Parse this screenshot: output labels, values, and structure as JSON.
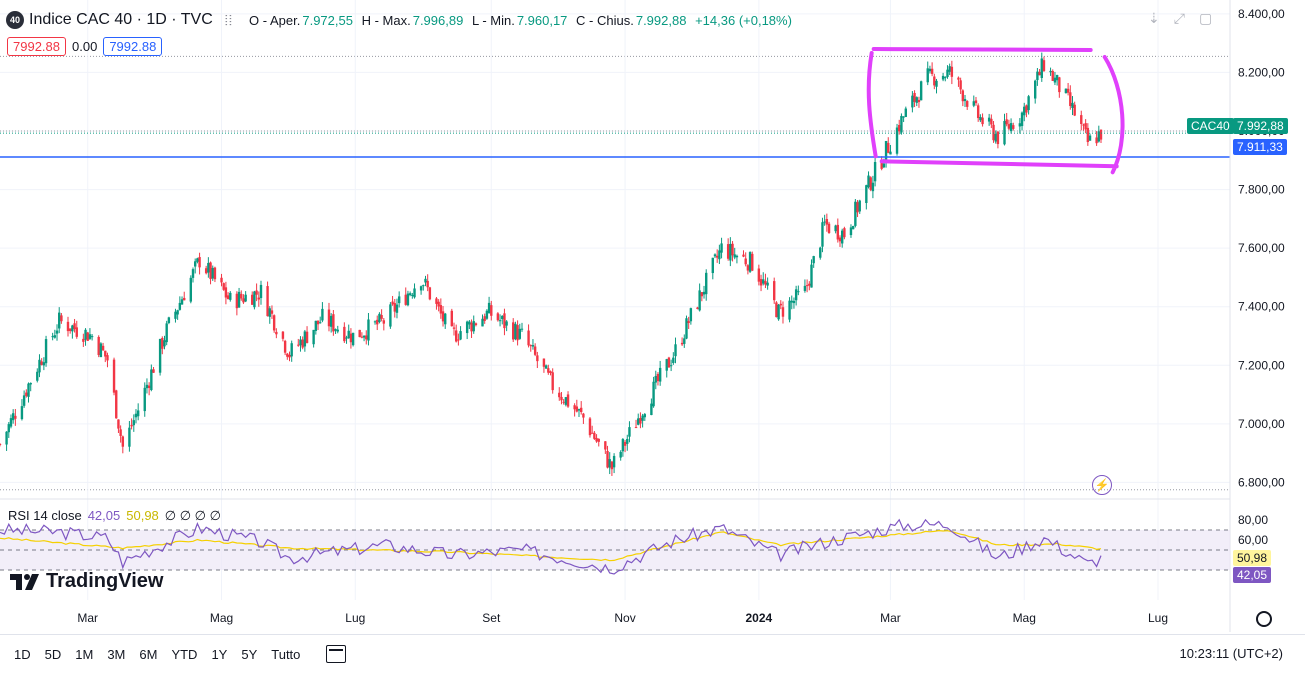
{
  "header": {
    "symbol_icon": "40",
    "title": "Indice CAC 40 · 1D · TVC",
    "more_icon": "⦙⦙",
    "ohlc": {
      "open_label": "O - Aper.",
      "open": "7.972,55",
      "high_label": "H - Max.",
      "high": "7.996,89",
      "low_label": "L - Min.",
      "low": "7.960,17",
      "close_label": "C - Chius.",
      "close": "7.992,88",
      "change": "+14,36 (+0,18%)"
    },
    "bid": "7992.88",
    "spread": "0.00",
    "ask": "7992.88",
    "icons": [
      "arrow-down-icon",
      "expand-icon",
      "maximize-icon"
    ]
  },
  "price_axis": {
    "labels": [
      "8.400,00",
      "8.200,00",
      "8.000,00",
      "7.800,00",
      "7.600,00",
      "7.400,00",
      "7.200,00",
      "7.000,00",
      "6.800,00"
    ]
  },
  "price_tags": {
    "symbol": "CAC40",
    "last": "7.992,88",
    "hline": "7.911,33"
  },
  "rsi": {
    "label": "RSI 14 close",
    "value": "42,05",
    "ma": "50,98",
    "extras": "∅ ∅ ∅ ∅",
    "axis": [
      "80,00",
      "60,00"
    ],
    "value_tag": "42,05",
    "ma_tag": "50,98"
  },
  "time_axis": {
    "labels": [
      "Mar",
      "Mag",
      "Lug",
      "Set",
      "Nov",
      "2024",
      "Mar",
      "Mag",
      "Lug"
    ]
  },
  "logo": "TradingView",
  "bottom": {
    "ranges": [
      "1D",
      "5D",
      "1M",
      "3M",
      "6M",
      "YTD",
      "1Y",
      "5Y",
      "Tutto"
    ],
    "clock": "10:23:11 (UTC+2)"
  },
  "colors": {
    "up": "#089981",
    "down": "#f23645",
    "hline": "#2962ff",
    "rectangle": "#e040fb",
    "rsi_line": "#7e57c2",
    "rsi_ma": "#f5d000",
    "rsi_band": "#ede7f6"
  },
  "chart_data": {
    "type": "candlestick",
    "symbol": "CAC40",
    "interval": "1D",
    "y_range": [
      6740,
      8420
    ],
    "hline_value": 7911.33,
    "rectangle": {
      "x_start": "2024-02-26",
      "x_end": "2024-05-24",
      "y_low": 7900,
      "y_high": 8280
    },
    "close_path": [
      [
        "2023-01-20",
        6930
      ],
      [
        "2023-02-03",
        7150
      ],
      [
        "2023-02-16",
        7350
      ],
      [
        "2023-03-03",
        7300
      ],
      [
        "2023-03-10",
        7220
      ],
      [
        "2023-03-17",
        6920
      ],
      [
        "2023-03-24",
        7050
      ],
      [
        "2023-04-06",
        7320
      ],
      [
        "2023-04-21",
        7560
      ],
      [
        "2023-05-05",
        7420
      ],
      [
        "2023-05-19",
        7450
      ],
      [
        "2023-06-01",
        7240
      ],
      [
        "2023-06-16",
        7360
      ],
      [
        "2023-06-30",
        7300
      ],
      [
        "2023-07-14",
        7350
      ],
      [
        "2023-07-31",
        7500
      ],
      [
        "2023-08-14",
        7300
      ],
      [
        "2023-08-31",
        7380
      ],
      [
        "2023-09-15",
        7300
      ],
      [
        "2023-09-29",
        7130
      ],
      [
        "2023-10-13",
        7020
      ],
      [
        "2023-10-26",
        6850
      ],
      [
        "2023-11-09",
        7050
      ],
      [
        "2023-11-24",
        7250
      ],
      [
        "2023-12-06",
        7450
      ],
      [
        "2023-12-15",
        7600
      ],
      [
        "2023-12-29",
        7550
      ],
      [
        "2024-01-10",
        7380
      ],
      [
        "2024-01-22",
        7450
      ],
      [
        "2024-01-31",
        7680
      ],
      [
        "2024-02-09",
        7650
      ],
      [
        "2024-02-23",
        7860
      ],
      [
        "2024-03-07",
        8050
      ],
      [
        "2024-03-18",
        8180
      ],
      [
        "2024-03-28",
        8200
      ],
      [
        "2024-04-10",
        8050
      ],
      [
        "2024-04-19",
        7980
      ],
      [
        "2024-04-30",
        8060
      ],
      [
        "2024-05-10",
        8230
      ],
      [
        "2024-05-17",
        8150
      ],
      [
        "2024-05-24",
        8060
      ],
      [
        "2024-05-30",
        7960
      ],
      [
        "2024-06-05",
        7992.88
      ]
    ],
    "rsi_path": [
      [
        "2023-01-20",
        70
      ],
      [
        "2023-02-16",
        68
      ],
      [
        "2023-03-10",
        62
      ],
      [
        "2023-03-17",
        38
      ],
      [
        "2023-04-21",
        72
      ],
      [
        "2023-05-19",
        58
      ],
      [
        "2023-06-01",
        42
      ],
      [
        "2023-07-14",
        55
      ],
      [
        "2023-08-14",
        45
      ],
      [
        "2023-09-15",
        50
      ],
      [
        "2023-10-26",
        32
      ],
      [
        "2023-11-24",
        60
      ],
      [
        "2023-12-15",
        72
      ],
      [
        "2024-01-10",
        45
      ],
      [
        "2024-01-31",
        58
      ],
      [
        "2024-03-07",
        75
      ],
      [
        "2024-03-28",
        76
      ],
      [
        "2024-04-19",
        42
      ],
      [
        "2024-05-10",
        62
      ],
      [
        "2024-05-30",
        36
      ],
      [
        "2024-06-05",
        42.05
      ]
    ],
    "rsi_ma_path": [
      [
        "2023-01-20",
        62
      ],
      [
        "2023-03-17",
        52
      ],
      [
        "2023-04-21",
        60
      ],
      [
        "2023-06-01",
        52
      ],
      [
        "2023-08-14",
        48
      ],
      [
        "2023-10-26",
        40
      ],
      [
        "2023-12-15",
        68
      ],
      [
        "2024-01-10",
        55
      ],
      [
        "2024-03-28",
        70
      ],
      [
        "2024-04-19",
        55
      ],
      [
        "2024-05-17",
        56
      ],
      [
        "2024-06-05",
        50.98
      ]
    ],
    "rsi_range": [
      0,
      100
    ],
    "rsi_bands": [
      70,
      30,
      50
    ]
  }
}
